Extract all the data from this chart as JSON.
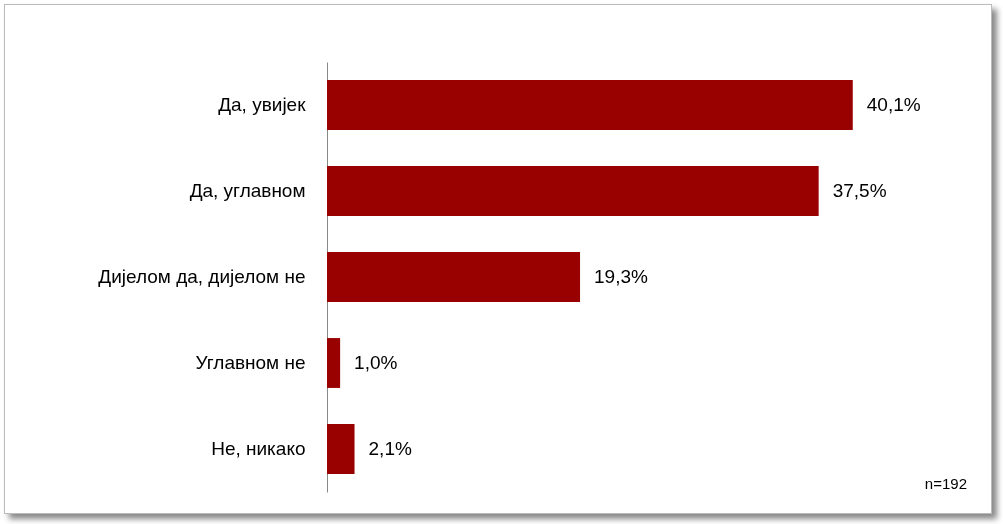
{
  "chart_data": {
    "type": "bar",
    "orientation": "horizontal",
    "categories": [
      "Да, увијек",
      "Да, углавном",
      "Дијелом да, дијелом не",
      "Углавном не",
      "Не, никако"
    ],
    "values": [
      40.1,
      37.5,
      19.3,
      1.0,
      2.1
    ],
    "color": "#990000",
    "value_labels": [
      "40,1%",
      "37,5%",
      "19,3%",
      "1,0%",
      "2,1%"
    ],
    "annotations": [
      "n=192"
    ],
    "grid": false
  }
}
